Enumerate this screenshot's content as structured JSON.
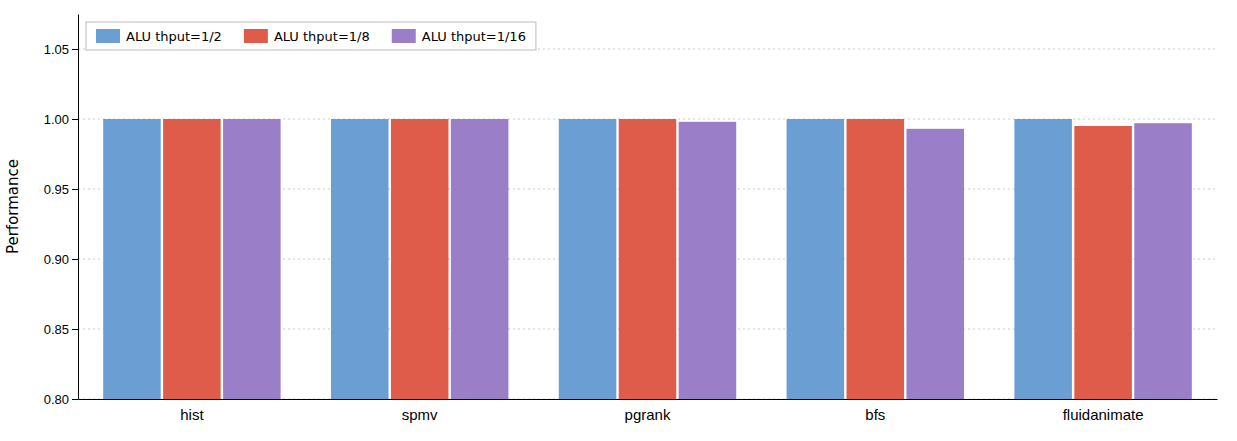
{
  "chart_data": {
    "type": "bar",
    "categories": [
      "hist",
      "spmv",
      "pgrank",
      "bfs",
      "fluidanimate"
    ],
    "series": [
      {
        "name": "ALU thput=1/2",
        "color": "#6B9FD4",
        "values": [
          1.0,
          1.0,
          1.0,
          1.0,
          1.0
        ]
      },
      {
        "name": "ALU thput=1/8",
        "color": "#E05C4A",
        "values": [
          1.0,
          1.0,
          1.0,
          1.0,
          0.995
        ]
      },
      {
        "name": "ALU thput=1/16",
        "color": "#9B7EC8",
        "values": [
          1.0,
          1.0,
          0.998,
          0.993,
          0.997
        ]
      }
    ],
    "ylabel": "Performance",
    "ylim": [
      0.8,
      1.075
    ],
    "yticks": [
      {
        "value": 0.8,
        "label": "0.80"
      },
      {
        "value": 0.85,
        "label": "0.85"
      },
      {
        "value": 0.9,
        "label": "0.90"
      },
      {
        "value": 0.95,
        "label": "0.95"
      },
      {
        "value": 1.0,
        "label": "1.00"
      },
      {
        "value": 1.05,
        "label": "1.05"
      }
    ],
    "grid": true,
    "legend": "upper left"
  }
}
